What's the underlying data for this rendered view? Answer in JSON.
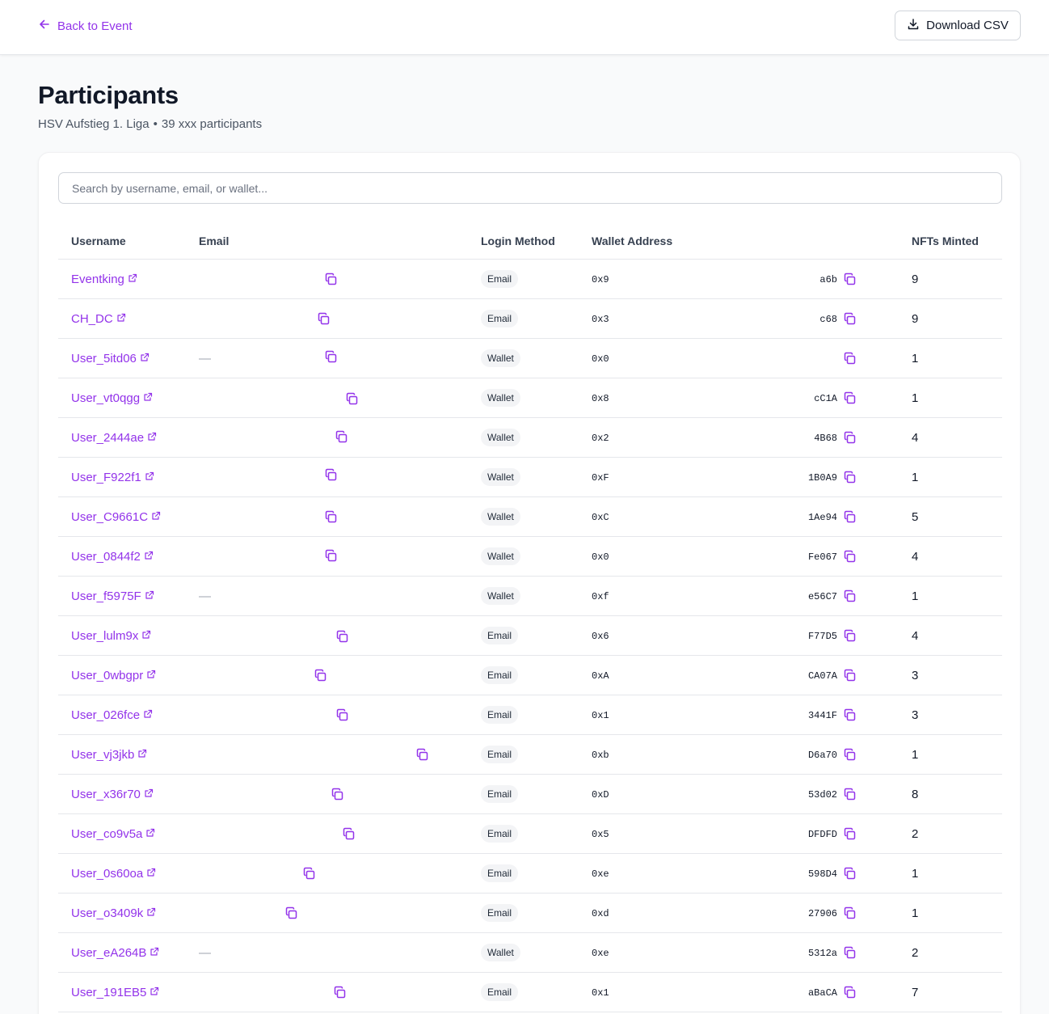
{
  "header": {
    "back_label": "Back to Event",
    "download_label": "Download CSV"
  },
  "page": {
    "title": "Participants",
    "event_name": "HSV Aufstieg 1. Liga",
    "separator": "•",
    "count_text": "39 xxx participants"
  },
  "search": {
    "placeholder": "Search by username, email, or wallet..."
  },
  "columns": {
    "username": "Username",
    "email": "Email",
    "login": "Login Method",
    "wallet": "Wallet Address",
    "nfts": "NFTs Minted"
  },
  "colors": {
    "accent": "#9333ea",
    "border": "#e5e7eb"
  },
  "rows": [
    {
      "username": "Eventking",
      "email": "",
      "login": "Email",
      "wallet_start": "0x9",
      "wallet_end": "a6b",
      "nfts": "9"
    },
    {
      "username": "CH_DC",
      "email": "",
      "login": "Email",
      "wallet_start": "0x3",
      "wallet_end": "c68",
      "nfts": "9"
    },
    {
      "username": "User_5itd06",
      "email": "—",
      "login": "Wallet",
      "wallet_start": "0x0",
      "wallet_end": "",
      "nfts": "1"
    },
    {
      "username": "User_vt0qgg",
      "email": "",
      "login": "Wallet",
      "wallet_start": "0x8",
      "wallet_end": "cC1A",
      "nfts": "1"
    },
    {
      "username": "User_2444ae",
      "email": "",
      "login": "Wallet",
      "wallet_start": "0x2",
      "wallet_end": "4B68",
      "nfts": "4"
    },
    {
      "username": "User_F922f1",
      "email": "",
      "login": "Wallet",
      "wallet_start": "0xF",
      "wallet_end": "1B0A9",
      "nfts": "1"
    },
    {
      "username": "User_C9661C",
      "email": "",
      "login": "Wallet",
      "wallet_start": "0xC",
      "wallet_end": "1Ae94",
      "nfts": "5"
    },
    {
      "username": "User_0844f2",
      "email": "",
      "login": "Wallet",
      "wallet_start": "0x0",
      "wallet_end": "Fe067",
      "nfts": "4"
    },
    {
      "username": "User_f5975F",
      "email": "—",
      "login": "Wallet",
      "wallet_start": "0xf",
      "wallet_end": "e56C7",
      "nfts": "1"
    },
    {
      "username": "User_lulm9x",
      "email": "",
      "login": "Email",
      "wallet_start": "0x6",
      "wallet_end": "F77D5",
      "nfts": "4"
    },
    {
      "username": "User_0wbgpr",
      "email": "",
      "login": "Email",
      "wallet_start": "0xA",
      "wallet_end": "CA07A",
      "nfts": "3"
    },
    {
      "username": "User_026fce",
      "email": "",
      "login": "Email",
      "wallet_start": "0x1",
      "wallet_end": "3441F",
      "nfts": "3"
    },
    {
      "username": "User_vj3jkb",
      "email": "",
      "login": "Email",
      "wallet_start": "0xb",
      "wallet_end": "D6a70",
      "nfts": "1"
    },
    {
      "username": "User_x36r70",
      "email": "",
      "login": "Email",
      "wallet_start": "0xD",
      "wallet_end": "53d02",
      "nfts": "8"
    },
    {
      "username": "User_co9v5a",
      "email": "",
      "login": "Email",
      "wallet_start": "0x5",
      "wallet_end": "DFDFD",
      "nfts": "2"
    },
    {
      "username": "User_0s60oa",
      "email": "",
      "login": "Email",
      "wallet_start": "0xe",
      "wallet_end": "598D4",
      "nfts": "1"
    },
    {
      "username": "User_o3409k",
      "email": "",
      "login": "Email",
      "wallet_start": "0xd",
      "wallet_end": "27906",
      "nfts": "1"
    },
    {
      "username": "User_eA264B",
      "email": "—",
      "login": "Wallet",
      "wallet_start": "0xe",
      "wallet_end": "5312a",
      "nfts": "2"
    },
    {
      "username": "User_191EB5",
      "email": "",
      "login": "Email",
      "wallet_start": "0x1",
      "wallet_end": "aBaCA",
      "nfts": "7"
    }
  ]
}
